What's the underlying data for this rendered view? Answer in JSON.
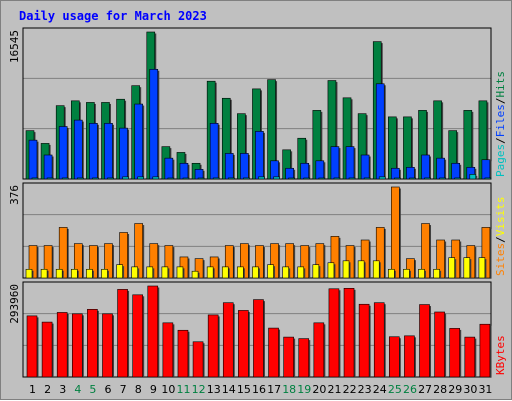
{
  "title": "Daily usage for March 2023",
  "colors": {
    "pages": "#00c0c0",
    "files": "#0040ff",
    "hits": "#008040",
    "sites": "#ff8000",
    "visits": "#ffff00",
    "kbytes": "#ff0000",
    "title": "#0000ff",
    "weekend_label": "#008040",
    "weekday_label": "#000000",
    "grid": "#808080",
    "panel": "#c0c0c0"
  },
  "panels": [
    {
      "id": "hits-panel",
      "ymax_label": "16545",
      "legend": [
        {
          "text": "Pages",
          "color": "#00c0c0"
        },
        {
          "text": "/",
          "color": "#000000"
        },
        {
          "text": "Files",
          "color": "#0040ff"
        },
        {
          "text": "/",
          "color": "#000000"
        },
        {
          "text": "Hits",
          "color": "#008040"
        }
      ]
    },
    {
      "id": "sites-panel",
      "ymax_label": "376",
      "legend": [
        {
          "text": "Sites",
          "color": "#ff8000"
        },
        {
          "text": "/",
          "color": "#000000"
        },
        {
          "text": "Visits",
          "color": "#ffff00"
        }
      ]
    },
    {
      "id": "kbytes-panel",
      "ymax_label": "293960",
      "legend": [
        {
          "text": "KBytes",
          "color": "#ff0000"
        }
      ]
    }
  ],
  "chart_data": {
    "type": "bar",
    "title": "Daily usage for March 2023",
    "x": [
      1,
      2,
      3,
      4,
      5,
      6,
      7,
      8,
      9,
      10,
      11,
      12,
      13,
      14,
      15,
      16,
      17,
      18,
      19,
      20,
      21,
      22,
      23,
      24,
      25,
      26,
      27,
      28,
      29,
      30,
      31
    ],
    "weekend_days": [
      4,
      5,
      11,
      12,
      18,
      19,
      25,
      26
    ],
    "series": [
      {
        "name": "Hits",
        "panel": 0,
        "ymax": 16545,
        "values": [
          5445,
          4005,
          8255,
          8798,
          8617,
          8617,
          8979,
          10504,
          16545,
          3644,
          2990,
          1769,
          11007,
          9087,
          7354,
          10142,
          11182,
          3284,
          4589,
          7723,
          11083,
          9137,
          7354,
          15463,
          6992,
          6992,
          7723,
          8798,
          5445,
          7723,
          8798
        ]
      },
      {
        "name": "Files",
        "panel": 0,
        "ymax": 16545,
        "values": [
          4372,
          2701,
          5908,
          6630,
          6267,
          6267,
          5727,
          8436,
          12349,
          2346,
          1769,
          1087,
          6267,
          2880,
          2880,
          5363,
          2048,
          1208,
          1769,
          2048,
          3644,
          3644,
          2701,
          10717,
          1208,
          1317,
          2701,
          2346,
          1769,
          1317,
          2168
        ]
      },
      {
        "name": "Pages",
        "panel": 0,
        "ymax": 16545,
        "values": [
          120,
          120,
          120,
          120,
          120,
          120,
          240,
          240,
          240,
          60,
          60,
          60,
          120,
          120,
          120,
          240,
          240,
          60,
          60,
          60,
          120,
          120,
          120,
          240,
          60,
          60,
          120,
          120,
          120,
          520,
          120
        ]
      },
      {
        "name": "Sites",
        "panel": 1,
        "ymax": 376,
        "values": [
          134,
          134,
          209,
          142,
          134,
          142,
          188,
          225,
          142,
          134,
          87,
          80,
          87,
          134,
          142,
          134,
          142,
          142,
          134,
          142,
          172,
          134,
          157,
          209,
          376,
          80,
          225,
          157,
          157,
          134,
          209
        ]
      },
      {
        "name": "Visits",
        "panel": 1,
        "ymax": 376,
        "values": [
          36,
          36,
          36,
          36,
          36,
          36,
          55,
          46,
          46,
          46,
          46,
          28,
          46,
          46,
          46,
          46,
          55,
          46,
          46,
          55,
          63,
          71,
          71,
          71,
          36,
          36,
          36,
          36,
          84,
          84,
          84
        ]
      },
      {
        "name": "KBytes",
        "panel": 2,
        "ymax": 293960,
        "values": [
          197460,
          177360,
          208500,
          204100,
          218600,
          204100,
          283000,
          265500,
          293960,
          175000,
          151000,
          113800,
          200500,
          240000,
          215000,
          250000,
          158000,
          128900,
          124000,
          175000,
          285000,
          286500,
          235000,
          240000,
          130000,
          133000,
          234000,
          210000,
          157000,
          128900,
          170500
        ]
      }
    ]
  }
}
